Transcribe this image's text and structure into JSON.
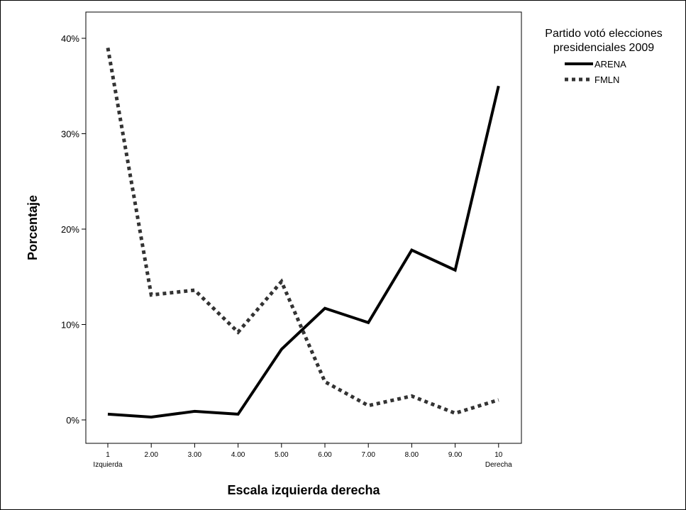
{
  "chart_data": {
    "type": "line",
    "xlabel": "Escala izquierda derecha",
    "ylabel": "Porcentaje",
    "categories": [
      "1",
      "2.00",
      "3.00",
      "4.00",
      "5.00",
      "6.00",
      "7.00",
      "8.00",
      "9.00",
      "10"
    ],
    "category_sublabels": [
      "Izquierda",
      "",
      "",
      "",
      "",
      "",
      "",
      "",
      "",
      "Derecha"
    ],
    "yticks": [
      "0%",
      "10%",
      "20%",
      "30%",
      "40%"
    ],
    "ylim": [
      0,
      40
    ],
    "legend": {
      "title_lines": [
        "Partido votó elecciones",
        "presidenciales 2009"
      ],
      "position": "top-right"
    },
    "series": [
      {
        "name": "ARENA",
        "style": "solid",
        "color": "#000000",
        "values": [
          0.6,
          0.3,
          0.9,
          0.6,
          7.4,
          11.7,
          10.2,
          17.8,
          15.7,
          35.0
        ]
      },
      {
        "name": "FMLN",
        "style": "dotted",
        "color": "#333333",
        "values": [
          39.0,
          13.1,
          13.6,
          9.2,
          14.5,
          4.0,
          1.5,
          2.5,
          0.7,
          2.1
        ]
      }
    ],
    "grid": false
  }
}
